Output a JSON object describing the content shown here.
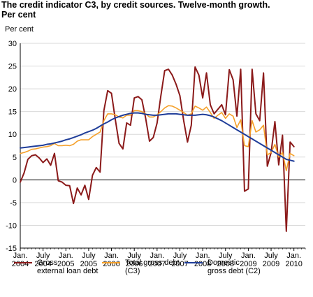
{
  "title_line1": "The credit indicator C3, by credit sources. Twelve-month growth.",
  "title_line2": "Per cent",
  "unit_label": "Per cent",
  "colors": {
    "gross": "#8b1a1a",
    "total": "#f5a02a",
    "domestic": "#1f3d99",
    "grid": "#d9d9d9",
    "axis": "#000000"
  },
  "chart_data": {
    "type": "line",
    "title": "The credit indicator C3, by credit sources. Twelve-month growth. Per cent",
    "ylabel": "Per cent",
    "ylim": [
      -15,
      30
    ],
    "yticks": [
      30,
      25,
      20,
      15,
      10,
      5,
      0,
      -5,
      -10,
      -15
    ],
    "x_start": "2004-01",
    "xlim_months": [
      0,
      75
    ],
    "xticks": [
      {
        "month": 0,
        "line1": "Jan.",
        "line2": "2004"
      },
      {
        "month": 6,
        "line1": "July",
        "line2": "2004"
      },
      {
        "month": 12,
        "line1": "Jan.",
        "line2": "2005"
      },
      {
        "month": 18,
        "line1": "July",
        "line2": "2005"
      },
      {
        "month": 24,
        "line1": "Jan.",
        "line2": "2006"
      },
      {
        "month": 30,
        "line1": "July",
        "line2": "2006"
      },
      {
        "month": 36,
        "line1": "Jan.",
        "line2": "2007"
      },
      {
        "month": 42,
        "line1": "July",
        "line2": "2007"
      },
      {
        "month": 48,
        "line1": "Jan.",
        "line2": "2008"
      },
      {
        "month": 54,
        "line1": "July",
        "line2": "2008"
      },
      {
        "month": 60,
        "line1": "Jan.",
        "line2": "2009"
      },
      {
        "month": 66,
        "line1": "July",
        "line2": "2009"
      },
      {
        "month": 72,
        "line1": "Jan.",
        "line2": "2010"
      }
    ],
    "grid": true,
    "legend_position": "bottom",
    "series": [
      {
        "name": "Gross external loan debt",
        "legend_line1": "Gross",
        "legend_line2": "external loan debt",
        "color_key": "gross",
        "values": [
          -0.5,
          1.5,
          4.5,
          5.3,
          5.5,
          4.8,
          3.8,
          4.6,
          3.2,
          5.8,
          -0.2,
          -0.5,
          -1.2,
          -1.3,
          -5.2,
          -1.8,
          -3.3,
          -1.2,
          -4.3,
          1.0,
          2.7,
          1.7,
          15.2,
          19.6,
          19.0,
          13.3,
          8.0,
          6.8,
          12.5,
          12.0,
          18.0,
          18.3,
          17.6,
          13.5,
          8.5,
          9.3,
          12.5,
          18.5,
          24.0,
          24.3,
          23.0,
          21.0,
          18.5,
          13.0,
          8.3,
          12.0,
          24.8,
          23.0,
          18.0,
          23.5,
          16.5,
          14.5,
          15.5,
          16.5,
          14.3,
          24.2,
          22.0,
          14.0,
          24.3,
          -2.5,
          -2.0,
          24.3,
          14.5,
          13.0,
          23.5,
          3.0,
          6.0,
          12.8,
          3.3,
          9.8,
          -11.3,
          8.3,
          7.3
        ]
      },
      {
        "name": "Total gross debt (C3)",
        "legend_line1": "Total gross debt",
        "legend_line2": "(C3)",
        "color_key": "total",
        "values": [
          5.8,
          6.0,
          6.3,
          6.7,
          6.8,
          7.0,
          7.2,
          7.3,
          7.5,
          8.0,
          7.5,
          7.5,
          7.6,
          7.5,
          7.8,
          8.5,
          8.8,
          8.8,
          8.8,
          9.5,
          10.0,
          10.5,
          13.0,
          14.5,
          14.5,
          14.3,
          13.8,
          13.6,
          14.2,
          14.2,
          15.2,
          15.2,
          15.0,
          14.5,
          13.8,
          13.8,
          14.3,
          15.0,
          15.8,
          16.3,
          16.2,
          15.8,
          15.3,
          14.8,
          14.2,
          14.5,
          16.2,
          15.8,
          15.3,
          16.0,
          14.8,
          13.5,
          14.2,
          14.8,
          13.5,
          14.5,
          14.0,
          11.5,
          13.2,
          7.5,
          7.3,
          13.0,
          10.5,
          11.0,
          12.0,
          5.5,
          6.0,
          7.8,
          5.0,
          6.0,
          2.0,
          5.8,
          5.3
        ]
      },
      {
        "name": "Domestic gross debt (C2)",
        "legend_line1": "Domestic",
        "legend_line2": "gross debt (C2)",
        "color_key": "domestic",
        "values": [
          7.0,
          7.1,
          7.2,
          7.3,
          7.4,
          7.5,
          7.6,
          7.8,
          7.9,
          8.1,
          8.3,
          8.5,
          8.8,
          9.0,
          9.3,
          9.6,
          9.9,
          10.3,
          10.6,
          10.9,
          11.3,
          11.8,
          12.3,
          12.7,
          13.2,
          13.6,
          13.9,
          14.2,
          14.4,
          14.6,
          14.7,
          14.7,
          14.6,
          14.4,
          14.3,
          14.2,
          14.2,
          14.3,
          14.4,
          14.5,
          14.5,
          14.5,
          14.4,
          14.3,
          14.2,
          14.2,
          14.2,
          14.3,
          14.4,
          14.3,
          14.1,
          13.8,
          13.4,
          13.0,
          12.5,
          12.0,
          11.5,
          11.0,
          10.5,
          10.0,
          9.5,
          9.0,
          8.5,
          8.0,
          7.5,
          7.0,
          6.5,
          6.0,
          5.5,
          5.0,
          4.5,
          4.3,
          4.1
        ]
      }
    ]
  }
}
